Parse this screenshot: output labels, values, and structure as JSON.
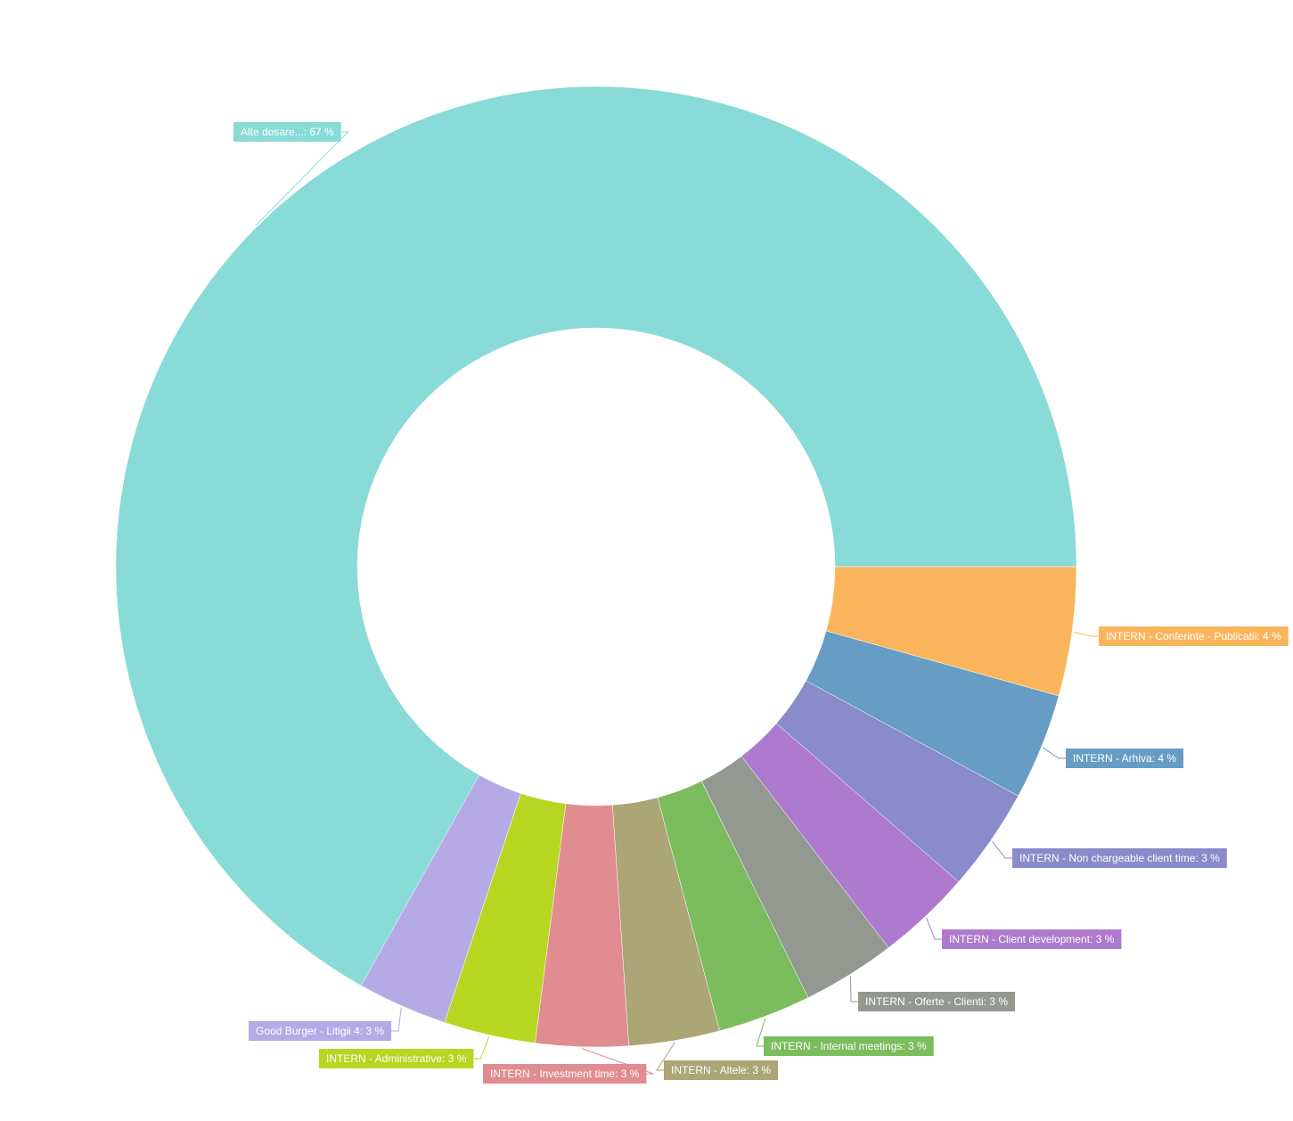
{
  "chart_data": {
    "type": "pie",
    "variant": "donut",
    "slices": [
      {
        "label": "Alte dosare...: 67 %",
        "name": "Alte dosare...",
        "value": 67,
        "color": "#88dbd6"
      },
      {
        "label": "INTERN - Conferinte - Publicatii: 4 %",
        "name": "INTERN - Conferinte - Publicatii",
        "value": 4,
        "color": "#fab55c"
      },
      {
        "label": "INTERN - Arhiva: 4 %",
        "name": "INTERN - Arhiva",
        "value": 4,
        "color": "#679dc4"
      },
      {
        "label": "INTERN - Non chargeable client time: 3 %",
        "name": "INTERN - Non chargeable client time",
        "value": 3,
        "color": "#8a8bca"
      },
      {
        "label": "INTERN - Client development: 3 %",
        "name": "INTERN - Client development",
        "value": 3,
        "color": "#ae7ace"
      },
      {
        "label": "INTERN - Oferte - Clienti: 3 %",
        "name": "INTERN - Oferte - Clienti",
        "value": 3,
        "color": "#939991"
      },
      {
        "label": "INTERN - Internal meetings: 3 %",
        "name": "INTERN - Internal meetings",
        "value": 3,
        "color": "#7bbd5c"
      },
      {
        "label": "INTERN - Altele: 3 %",
        "name": "INTERN - Altele",
        "value": 3,
        "color": "#aca576"
      },
      {
        "label": "INTERN - Investment time: 3 %",
        "name": "INTERN - Investment time",
        "value": 3,
        "color": "#e08c90"
      },
      {
        "label": "INTERN - Administrative: 3 %",
        "name": "INTERN - Administrative",
        "value": 3,
        "color": "#b7d622"
      },
      {
        "label": "Good Burger - Litigii 4: 3 %",
        "name": "Good Burger - Litigii 4",
        "value": 3,
        "color": "#b6aae6"
      }
    ]
  }
}
